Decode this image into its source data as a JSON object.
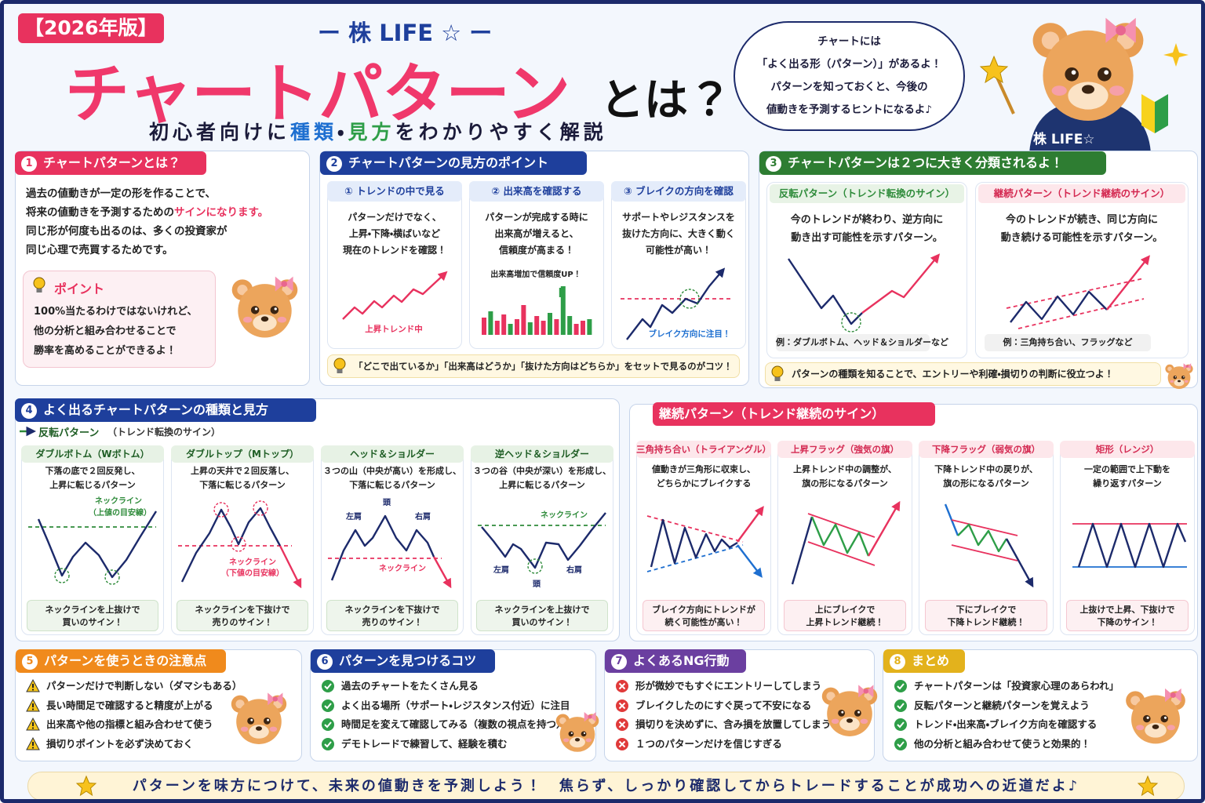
{
  "header": {
    "badge": "【2026年版】",
    "brand": "ー 株 LIFE ☆ ー",
    "title": "チャートパターン",
    "title_suffix": "とは？",
    "subtitle": [
      "初心者向けに",
      "種類",
      "・",
      "見方",
      "をわかりやすく解説"
    ]
  },
  "speech_bubble": [
    "チャートには",
    "「よく出る形（パターン）」があるよ！",
    "パターンを知っておくと、今後の",
    "値動きを予測するヒントになるよ♪"
  ],
  "mascot_label": "株 LIFE☆",
  "section1": {
    "number": "1",
    "title": "チャートパターンとは？",
    "lines": [
      "過去の値動きが一定の形を作ることで、",
      "将来の値動きを予測するための",
      "同じ形が何度も出るのは、多くの投資家が",
      "同じ心理で売買するためです。"
    ],
    "highlight": "サインになります。",
    "point": {
      "title": "ポイント",
      "lines": [
        "100%当たるわけではないけれど、",
        "他の分析と組み合わせることで",
        "勝率を高めることができるよ！"
      ]
    }
  },
  "section2": {
    "number": "2",
    "title": "チャートパターンの見方のポイント",
    "columns": [
      {
        "heading": "① トレンドの中で見る",
        "lines": [
          "パターンだけでなく、",
          "上昇・下降・横ばいなど",
          "現在のトレンドを確認！"
        ],
        "chart_label": "上昇トレンド中"
      },
      {
        "heading": "② 出来高を確認する",
        "lines": [
          "パターンが完成する時に",
          "出来高が増えると、",
          "信頼度が高まる！"
        ],
        "chart_label": "出来高増加で信頼度UP！"
      },
      {
        "heading": "③ ブレイクの方向を確認",
        "lines": [
          "サポートやレジスタンスを",
          "抜けた方向に、大きく動く",
          "可能性が高い！"
        ],
        "chart_label": "ブレイク方向に注目！"
      }
    ],
    "tip": "「どこで出ているか」「出来高はどうか」「抜けた方向はどちらか」をセットで見るのがコツ！"
  },
  "section3": {
    "number": "3",
    "title": "チャートパターンは２つに大きく分類されるよ！",
    "cards": [
      {
        "heading": "反転パターン（トレンド転換のサイン）",
        "lines": [
          "今のトレンドが終わり、逆方向に",
          "動き出す可能性を示すパターン。"
        ],
        "example": "例：ダブルボトム、ヘッド＆ショルダーなど"
      },
      {
        "heading": "継続パターン（トレンド継続のサイン）",
        "lines": [
          "今のトレンドが続き、同じ方向に",
          "動き続ける可能性を示すパターン。"
        ],
        "example": "例：三角持ち合い、フラッグなど"
      }
    ],
    "tip": "パターンの種類を知ることで、エントリーや利確・損切りの判断に役立つよ！"
  },
  "section4": {
    "number": "4",
    "title": "よく出るチャートパターンの種類と見方",
    "group_label": "反転パターン",
    "group_note": "（トレンド転換のサイン）",
    "cards": [
      {
        "title": "ダブルボトム（Wボトム）",
        "lines": [
          "下落の底で２回反発し、",
          "上昇に転じるパターン"
        ],
        "chart_labels": [
          "ネックライン",
          "（上値の目安線）"
        ],
        "result": [
          "ネックラインを上抜けで",
          "買いのサイン！"
        ]
      },
      {
        "title": "ダブルトップ（Mトップ）",
        "lines": [
          "上昇の天井で２回反落し、",
          "下落に転じるパターン"
        ],
        "chart_labels": [
          "ネックライン",
          "（下値の目安線）"
        ],
        "result": [
          "ネックラインを下抜けで",
          "売りのサイン！"
        ]
      },
      {
        "title": "ヘッド＆ショルダー",
        "lines": [
          "３つの山（中央が高い）を形成し、",
          "下落に転じるパターン"
        ],
        "chart_labels": [
          "左肩",
          "頭",
          "右肩",
          "ネックライン"
        ],
        "result": [
          "ネックラインを下抜けで",
          "売りのサイン！"
        ]
      },
      {
        "title": "逆ヘッド＆ショルダー",
        "lines": [
          "３つの谷（中央が深い）を形成し、",
          "上昇に転じるパターン"
        ],
        "chart_labels": [
          "ネックライン",
          "左肩",
          "頭",
          "右肩"
        ],
        "result": [
          "ネックラインを上抜けで",
          "買いのサイン！"
        ]
      }
    ]
  },
  "continuation": {
    "title": "継続パターン（トレンド継続のサイン）",
    "cards": [
      {
        "title": "三角持ち合い（トライアングル）",
        "lines": [
          "値動きが三角形に収束し、",
          "どちらかにブレイクする"
        ],
        "result": [
          "ブレイク方向にトレンドが",
          "続く可能性が高い！"
        ]
      },
      {
        "title": "上昇フラッグ（強気の旗）",
        "lines": [
          "上昇トレンド中の調整が、",
          "旗の形になるパターン"
        ],
        "result": [
          "上にブレイクで",
          "上昇トレンド継続！"
        ]
      },
      {
        "title": "下降フラッグ（弱気の旗）",
        "lines": [
          "下降トレンド中の戻りが、",
          "旗の形になるパターン"
        ],
        "result": [
          "下にブレイクで",
          "下降トレンド継続！"
        ]
      },
      {
        "title": "矩形（レンジ）",
        "lines": [
          "一定の範囲で上下動を",
          "繰り返すパターン"
        ],
        "result": [
          "上抜けで上昇、下抜けで",
          "下降のサイン！"
        ]
      }
    ]
  },
  "section5": {
    "number": "5",
    "title": "パターンを使うときの注意点",
    "items": [
      "パターンだけで判断しない（ダマシもある）",
      "長い時間足で確認すると精度が上がる",
      "出来高や他の指標と組み合わせて使う",
      "損切りポイントを必ず決めておく"
    ]
  },
  "section6": {
    "number": "6",
    "title": "パターンを見つけるコツ",
    "items": [
      "過去のチャートをたくさん見る",
      "よく出る場所（サポート・レジスタンス付近）に注目",
      "時間足を変えて確認してみる（複数の視点を持つ）",
      "デモトレードで練習して、経験を積む"
    ]
  },
  "section7": {
    "number": "7",
    "title": "よくあるNG行動",
    "items": [
      "形が微妙でもすぐにエントリーしてしまう",
      "ブレイクしたのにすぐ戻って不安になる",
      "損切りを決めずに、含み損を放置してしまう",
      "１つのパターンだけを信じすぎる"
    ]
  },
  "section8": {
    "number": "8",
    "title": "まとめ",
    "items": [
      "チャートパターンは「投資家心理のあらわれ」",
      "反転パターンと継続パターンを覚えよう",
      "トレンド・出来高・ブレイク方向を確認する",
      "他の分析と組み合わせて使うと効果的！"
    ]
  },
  "footer": "パターンを味方につけて、未来の値動きを予測しよう！　焦らず、しっかり確認してからトレードすることが成功への近道だよ♪"
}
